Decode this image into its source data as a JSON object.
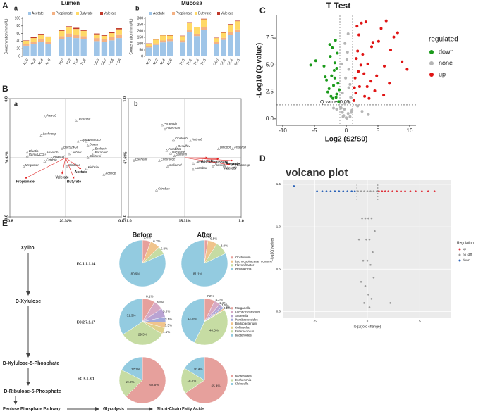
{
  "chart_data": [
    {
      "type": "stacked_bar",
      "panel": "A",
      "subpanel": "a",
      "title": "Lumen",
      "ylabel": "Concentration(mmol/L)",
      "categories": [
        "AC0",
        "AC2",
        "AC4",
        "AC6",
        "TC0",
        "TC2",
        "TC4",
        "TC6",
        "DC0",
        "DC2",
        "DC4",
        "DC6"
      ],
      "series": [
        {
          "name": "Acetate",
          "color": "#9fc5e8",
          "values": [
            28,
            32,
            38,
            33,
            45,
            50,
            48,
            45,
            40,
            38,
            42,
            48
          ]
        },
        {
          "name": "Propionate",
          "color": "#f4b183",
          "values": [
            5,
            6,
            7,
            6,
            8,
            10,
            9,
            8,
            8,
            7,
            8,
            10
          ]
        },
        {
          "name": "Butyrate",
          "color": "#ffd966",
          "values": [
            8,
            10,
            12,
            11,
            14,
            16,
            15,
            14,
            10,
            9,
            11,
            13
          ]
        },
        {
          "name": "Valerate",
          "color": "#c0392b",
          "values": [
            1,
            2,
            2,
            2,
            3,
            3,
            3,
            3,
            2,
            2,
            2,
            3
          ]
        }
      ],
      "ylim": [
        0,
        100
      ],
      "yticks": [
        0,
        20,
        40,
        60,
        80,
        100
      ]
    },
    {
      "type": "stacked_bar",
      "subpanel": "b",
      "title": "Mucosa",
      "ylabel": "Concentration(mmol/L)",
      "categories": [
        "AC0",
        "AC2",
        "AC4",
        "AC6",
        "TC0",
        "TC2",
        "TC4",
        "TC6",
        "DC0",
        "DC2",
        "DC4",
        "DC6"
      ],
      "series": [
        {
          "name": "Acetate",
          "color": "#9fc5e8",
          "values": [
            70,
            90,
            110,
            120,
            110,
            190,
            160,
            210,
            100,
            130,
            170,
            190
          ]
        },
        {
          "name": "Propionate",
          "color": "#f4b183",
          "values": [
            10,
            12,
            15,
            14,
            15,
            20,
            18,
            22,
            14,
            16,
            20,
            22
          ]
        },
        {
          "name": "Butyrate",
          "color": "#ffd966",
          "values": [
            20,
            30,
            40,
            30,
            35,
            55,
            50,
            60,
            30,
            40,
            60,
            65
          ]
        },
        {
          "name": "Valerate",
          "color": "#c0392b",
          "values": [
            2,
            3,
            3,
            3,
            3,
            4,
            4,
            4,
            3,
            3,
            4,
            4
          ]
        }
      ],
      "ylim": [
        0,
        300
      ],
      "yticks": [
        0,
        50,
        100,
        150,
        200,
        250,
        300
      ]
    },
    {
      "type": "biplot",
      "panel": "B",
      "subpanel": "a",
      "xlabel": "20.34%",
      "ylabel": "70.62%",
      "xlim": [
        -0.8,
        0.8
      ],
      "ylim": [
        -0.8,
        0.8
      ],
      "xticks": [
        -0.8,
        0.8
      ],
      "yticks": [
        -0.8,
        0.8
      ],
      "points": {
        "names": [
          "Prevo6",
          "Unclassif",
          "Lachnosp",
          "Copec3",
          "Enteroco",
          "Dorea",
          "Bac524Gr",
          "Escheric",
          "Parabact",
          "Lachno1",
          "Bacteroi",
          "Bluatia",
          "Anaerob",
          "Rumi/UCG",
          "Phascol",
          "Closrtie",
          "Megamon",
          "Citrobac",
          "Kiebsiel",
          "Actinob"
        ],
        "x": [
          -0.3,
          0.15,
          -0.35,
          0.18,
          0.3,
          0.32,
          -0.05,
          0.4,
          0.4,
          0.05,
          0.32,
          -0.55,
          -0.3,
          -0.55,
          -0.2,
          -0.3,
          -0.6,
          0.02,
          0.3,
          0.55
        ],
        "y": [
          0.55,
          0.5,
          0.3,
          0.22,
          0.22,
          0.16,
          0.12,
          0.1,
          0.05,
          0.05,
          0.0,
          0.07,
          0.05,
          0.02,
          -0.01,
          -0.05,
          -0.12,
          -0.12,
          -0.15,
          -0.23
        ]
      },
      "arrows": {
        "names": [
          "Propionate",
          "Valerate",
          "Acetate",
          "Butyrate"
        ],
        "x": [
          -0.58,
          -0.05,
          0.22,
          0.12
        ],
        "y": [
          -0.28,
          -0.22,
          -0.15,
          -0.28
        ],
        "color": "#e02020"
      }
    },
    {
      "type": "biplot",
      "subpanel": "b",
      "xlabel": "15.31%",
      "ylabel": "67.68%",
      "xlim": [
        -1,
        1
      ],
      "ylim": [
        -1,
        1
      ],
      "xticks": [
        {
          "value": -1,
          "label": "-1.0"
        },
        {
          "value": 1,
          "label": "1.0"
        }
      ],
      "yticks": [
        {
          "value": -1,
          "label": "-1.0"
        },
        {
          "value": 1,
          "label": "1.0"
        }
      ],
      "points": {
        "names": [
          "Pyramidb",
          "Alderman",
          "Closterib",
          "Actinob",
          "Desulfov",
          "Parabact",
          "Bacteroid",
          "Sutterel",
          "Escheric",
          "Enterococ",
          "Colicerel",
          "Lachno1",
          "Lactobac",
          "Bifidobc",
          "Anaerob",
          "Akkerm",
          "Lactoesp",
          "Prevotel",
          "Citrobac"
        ],
        "x": [
          -0.4,
          -0.35,
          -0.2,
          0.1,
          -0.15,
          -0.32,
          -0.25,
          -0.18,
          -0.9,
          -0.45,
          -0.3,
          0.15,
          0.15,
          0.6,
          0.85,
          0.5,
          0.9,
          0.7,
          -0.5
        ],
        "y": [
          0.55,
          0.48,
          0.3,
          0.28,
          0.17,
          0.12,
          0.07,
          0.03,
          -0.05,
          -0.05,
          -0.15,
          -0.1,
          -0.2,
          0.15,
          0.15,
          -0.15,
          -0.15,
          -0.13,
          -0.55
        ]
      },
      "arrows": {
        "names": [
          "Acetate",
          "Propionate",
          "Butyrate",
          "Valerate"
        ],
        "x": [
          0.4,
          0.6,
          0.85,
          0.8
        ],
        "y": [
          0.0,
          -0.02,
          -0.05,
          -0.12
        ],
        "color": "#e02020"
      }
    },
    {
      "type": "volcano",
      "panel": "C",
      "title": "T Test",
      "xlabel": "Log2 (S2/S0)",
      "ylabel": "-Log10 (Q value)",
      "annotation": "Q value: 0.05",
      "legend_title": "regulated",
      "legend": "right",
      "xlim": [
        -11,
        11
      ],
      "ylim": [
        -0.6,
        9.6
      ],
      "xticks": [
        -10,
        -5,
        0,
        5,
        10
      ],
      "yticks": [
        {
          "value": 0,
          "label": "0.0"
        },
        2.5,
        {
          "value": 5,
          "label": "5.0"
        },
        7.5
      ],
      "hlines": [
        1.3
      ],
      "vlines": [
        -1,
        1
      ],
      "grid": false,
      "series": [
        {
          "name": "down",
          "color": "#1a9a1a",
          "x": [
            -1.2,
            -1.5,
            -2.0,
            -2.3,
            -1.8,
            -3.1,
            -2.7,
            -1.4,
            -1.9,
            -2.5,
            -3.5,
            -1.6,
            -2.2,
            -4.8,
            -1.3,
            -2.9,
            -1.7,
            -2.1,
            -5.6,
            -3.3,
            -1.5,
            -2.4,
            -1.8,
            -1.1,
            -2.6
          ],
          "values": [
            1.6,
            2.3,
            3.1,
            4.0,
            5.2,
            3.6,
            2.8,
            6.1,
            4.5,
            5.8,
            4.9,
            2.0,
            6.6,
            5.4,
            3.3,
            2.5,
            7.3,
            1.9,
            5.0,
            3.9,
            4.7,
            2.1,
            3.8,
            2.7,
            6.9
          ]
        },
        {
          "name": "none",
          "color": "#b5b5b5",
          "x": [
            -0.5,
            0.3,
            -0.8,
            0.6,
            0.1,
            -0.2,
            0.9,
            -0.6,
            0.4,
            -0.9,
            0.2,
            -0.4,
            0.7,
            0,
            -0.1,
            0.5,
            -0.7,
            0.8,
            -0.3,
            0.3,
            2.5,
            -2.0,
            3.5,
            -1.5,
            1.8,
            0.6,
            -0.2,
            0.1,
            -0.6,
            0.4
          ],
          "values": [
            0.2,
            0.5,
            1.0,
            3.2,
            5.5,
            7.0,
            0.8,
            2.4,
            4.6,
            1.1,
            6.2,
            0.3,
            2.0,
            0.1,
            3.8,
            1.5,
            5.1,
            0.6,
            0.9,
            7.9,
            0.7,
            1.0,
            0.4,
            0.9,
            1.2,
            0.2,
            1.4,
            0.05,
            0.6,
            2.9
          ]
        },
        {
          "name": "up",
          "color": "#e01414",
          "x": [
            1.2,
            1.5,
            2.1,
            2.8,
            3.4,
            1.8,
            4.2,
            5.5,
            6.3,
            7.5,
            8.8,
            9.6,
            2.4,
            3.9,
            1.3,
            2.6,
            4.8,
            5.9,
            1.6,
            3.1,
            7.0,
            2.0,
            4.5,
            6.8,
            1.9,
            3.6,
            5.1,
            8.1,
            1.4,
            2.3,
            2.9,
            4.0,
            6.0,
            1.7,
            3.3
          ],
          "values": [
            1.7,
            2.4,
            3.0,
            4.2,
            5.1,
            6.3,
            7.1,
            8.4,
            9.1,
            7.6,
            5.3,
            4.6,
            8.9,
            3.5,
            2.9,
            6.0,
            4.0,
            2.2,
            5.6,
            9.0,
            6.4,
            7.8,
            2.6,
            3.3,
            4.4,
            1.9,
            7.2,
            8.0,
            3.8,
            5.0,
            2.1,
            6.7,
            4.9,
            8.6,
            3.0
          ]
        }
      ]
    },
    {
      "type": "volcano",
      "panel": "D",
      "title": "volcano plot",
      "xlabel": "log2(fold change)",
      "ylabel": "-log10(pvalue)",
      "legend_title": "Regulation",
      "legend": "right",
      "background": "#ebebeb",
      "grid": true,
      "xlim": [
        -8,
        8
      ],
      "ylim": [
        -0.08,
        1.55
      ],
      "xticks": [
        -5,
        0,
        5
      ],
      "yticks": [
        {
          "value": 0,
          "label": "0.0"
        },
        0.5,
        {
          "value": 1,
          "label": "1.0"
        },
        1.5
      ],
      "vlines": [
        -1,
        1
      ],
      "series": [
        {
          "name": "up",
          "color": "#e0303a",
          "x": [
            1.1,
            1.4,
            1.7,
            2.0,
            2.4,
            2.8,
            3.2,
            3.6,
            4.1,
            4.6,
            5.2,
            5.8,
            6.4
          ],
          "values": [
            1.42,
            1.42,
            1.42,
            1.42,
            1.42,
            1.42,
            1.42,
            1.42,
            1.42,
            1.42,
            1.42,
            1.42,
            1.42
          ]
        },
        {
          "name": "no_diff",
          "color": "#9a9a9a",
          "x": [
            -0.9,
            -0.6,
            -0.3,
            0,
            0.3,
            0.6,
            0.9,
            -0.5,
            -0.2,
            0.1,
            0.4,
            0.7,
            -0.8,
            -0.1,
            0.2,
            0.5,
            -0.4,
            0.0,
            0.3,
            0.6,
            -0.6,
            -0.2,
            0.1,
            0.4,
            -0.3,
            0.2,
            2.2
          ],
          "values": [
            1.42,
            1.42,
            1.42,
            1.42,
            1.42,
            1.42,
            1.42,
            1.1,
            1.1,
            1.1,
            1.1,
            0.95,
            0.85,
            0.85,
            0.85,
            0.7,
            0.6,
            0.6,
            0.55,
            0.4,
            0.35,
            0.3,
            0.2,
            0.15,
            0.1,
            0.05,
            0.1
          ]
        },
        {
          "name": "down",
          "color": "#2a62b8",
          "x": [
            -7.0,
            -4.8,
            -4.3,
            -3.9,
            -3.5,
            -3.1,
            -2.7,
            -2.3,
            -1.9,
            -1.5,
            -1.2
          ],
          "values": [
            1.48,
            1.42,
            1.42,
            1.42,
            1.42,
            1.42,
            1.42,
            1.42,
            1.42,
            1.42,
            1.42
          ]
        }
      ]
    },
    {
      "type": "pie",
      "panel": "E",
      "values": [
        5.8,
        6.7,
        5.8,
        80.9
      ],
      "value_labels": [
        "5.8%",
        "6.7%",
        "5.8%",
        "80.9%"
      ],
      "colors": [
        "#e6a09c",
        "#f0c48c",
        "#c6dca3",
        "#93cbe0"
      ]
    },
    {
      "type": "pie",
      "labels": [
        "Clostridium",
        "Lachnospiraceae_noname",
        "Flavonifractor",
        "Providencia"
      ],
      "values": [
        2.4,
        6.5,
        8.9,
        81.1
      ],
      "value_labels": [
        "2.4%",
        "6.5%",
        "8.9%",
        "81.1%"
      ],
      "colors": [
        "#e6a09c",
        "#f0c48c",
        "#c6dca3",
        "#93cbe0"
      ]
    },
    {
      "type": "pie",
      "values": [
        8.1,
        5.9,
        5.8,
        3.5,
        3.5,
        4.1,
        29.3,
        31.3
      ],
      "value_labels": [
        "8.1%",
        "5.9%",
        "5.8%",
        "3.5%",
        "3.5%",
        "4.1%",
        "29.3%",
        "31.3%"
      ],
      "colors": [
        "#e6a09c",
        "#d7a9c4",
        "#b9a3d3",
        "#a3aada",
        "#f0c48c",
        "#e0d08a",
        "#c6dca3",
        "#93cbe0"
      ]
    },
    {
      "type": "pie",
      "labels": [
        "Morganella",
        "Lachnoclostridium",
        "Sutterella",
        "Parabacteroides",
        "Bifidobacterium",
        "Collinsella",
        "Enterococcus",
        "Bacteroides"
      ],
      "values": [
        7.2,
        4.2,
        2.3,
        1.5,
        1.0,
        0.2,
        40.8,
        42.8
      ],
      "value_labels": [
        "7.2%",
        "4.2%",
        "2.3%",
        "1.5%",
        "1.0%",
        "0.2%",
        "40.8%",
        "42.8%"
      ],
      "colors": [
        "#e6a09c",
        "#d7a9c4",
        "#b9a3d3",
        "#a3aada",
        "#f0c48c",
        "#e0d08a",
        "#c6dca3",
        "#93cbe0"
      ]
    },
    {
      "type": "pie",
      "values": [
        62.5,
        19.8,
        17.7
      ],
      "value_labels": [
        "62.5%",
        "19.8%",
        "17.7%"
      ],
      "colors": [
        "#e6a09c",
        "#c6dca3",
        "#93cbe0"
      ]
    },
    {
      "type": "pie",
      "labels": [
        "Bacteroides",
        "Escherichia",
        "Klebsiella"
      ],
      "values": [
        65.4,
        18.2,
        16.4
      ],
      "value_labels": [
        "65.4%",
        "18.2%",
        "16.4%"
      ],
      "colors": [
        "#e6a09c",
        "#c6dca3",
        "#93cbe0"
      ]
    }
  ],
  "pathway": {
    "columns": [
      "Before",
      "After"
    ],
    "steps": [
      "Xylitol",
      "D-Xylulose",
      "D-Xylulose-5-Phosphate",
      "D-Ribulose-5-Phosphate"
    ],
    "enzymes": [
      "EC 1.1.1.14",
      "EC 2.7.1.17",
      "EC 5.1.3.1"
    ],
    "downstream": [
      "Pentose Phosphate Pathway",
      "Glycolysis",
      "Short-Chain Fatty Acids"
    ]
  }
}
